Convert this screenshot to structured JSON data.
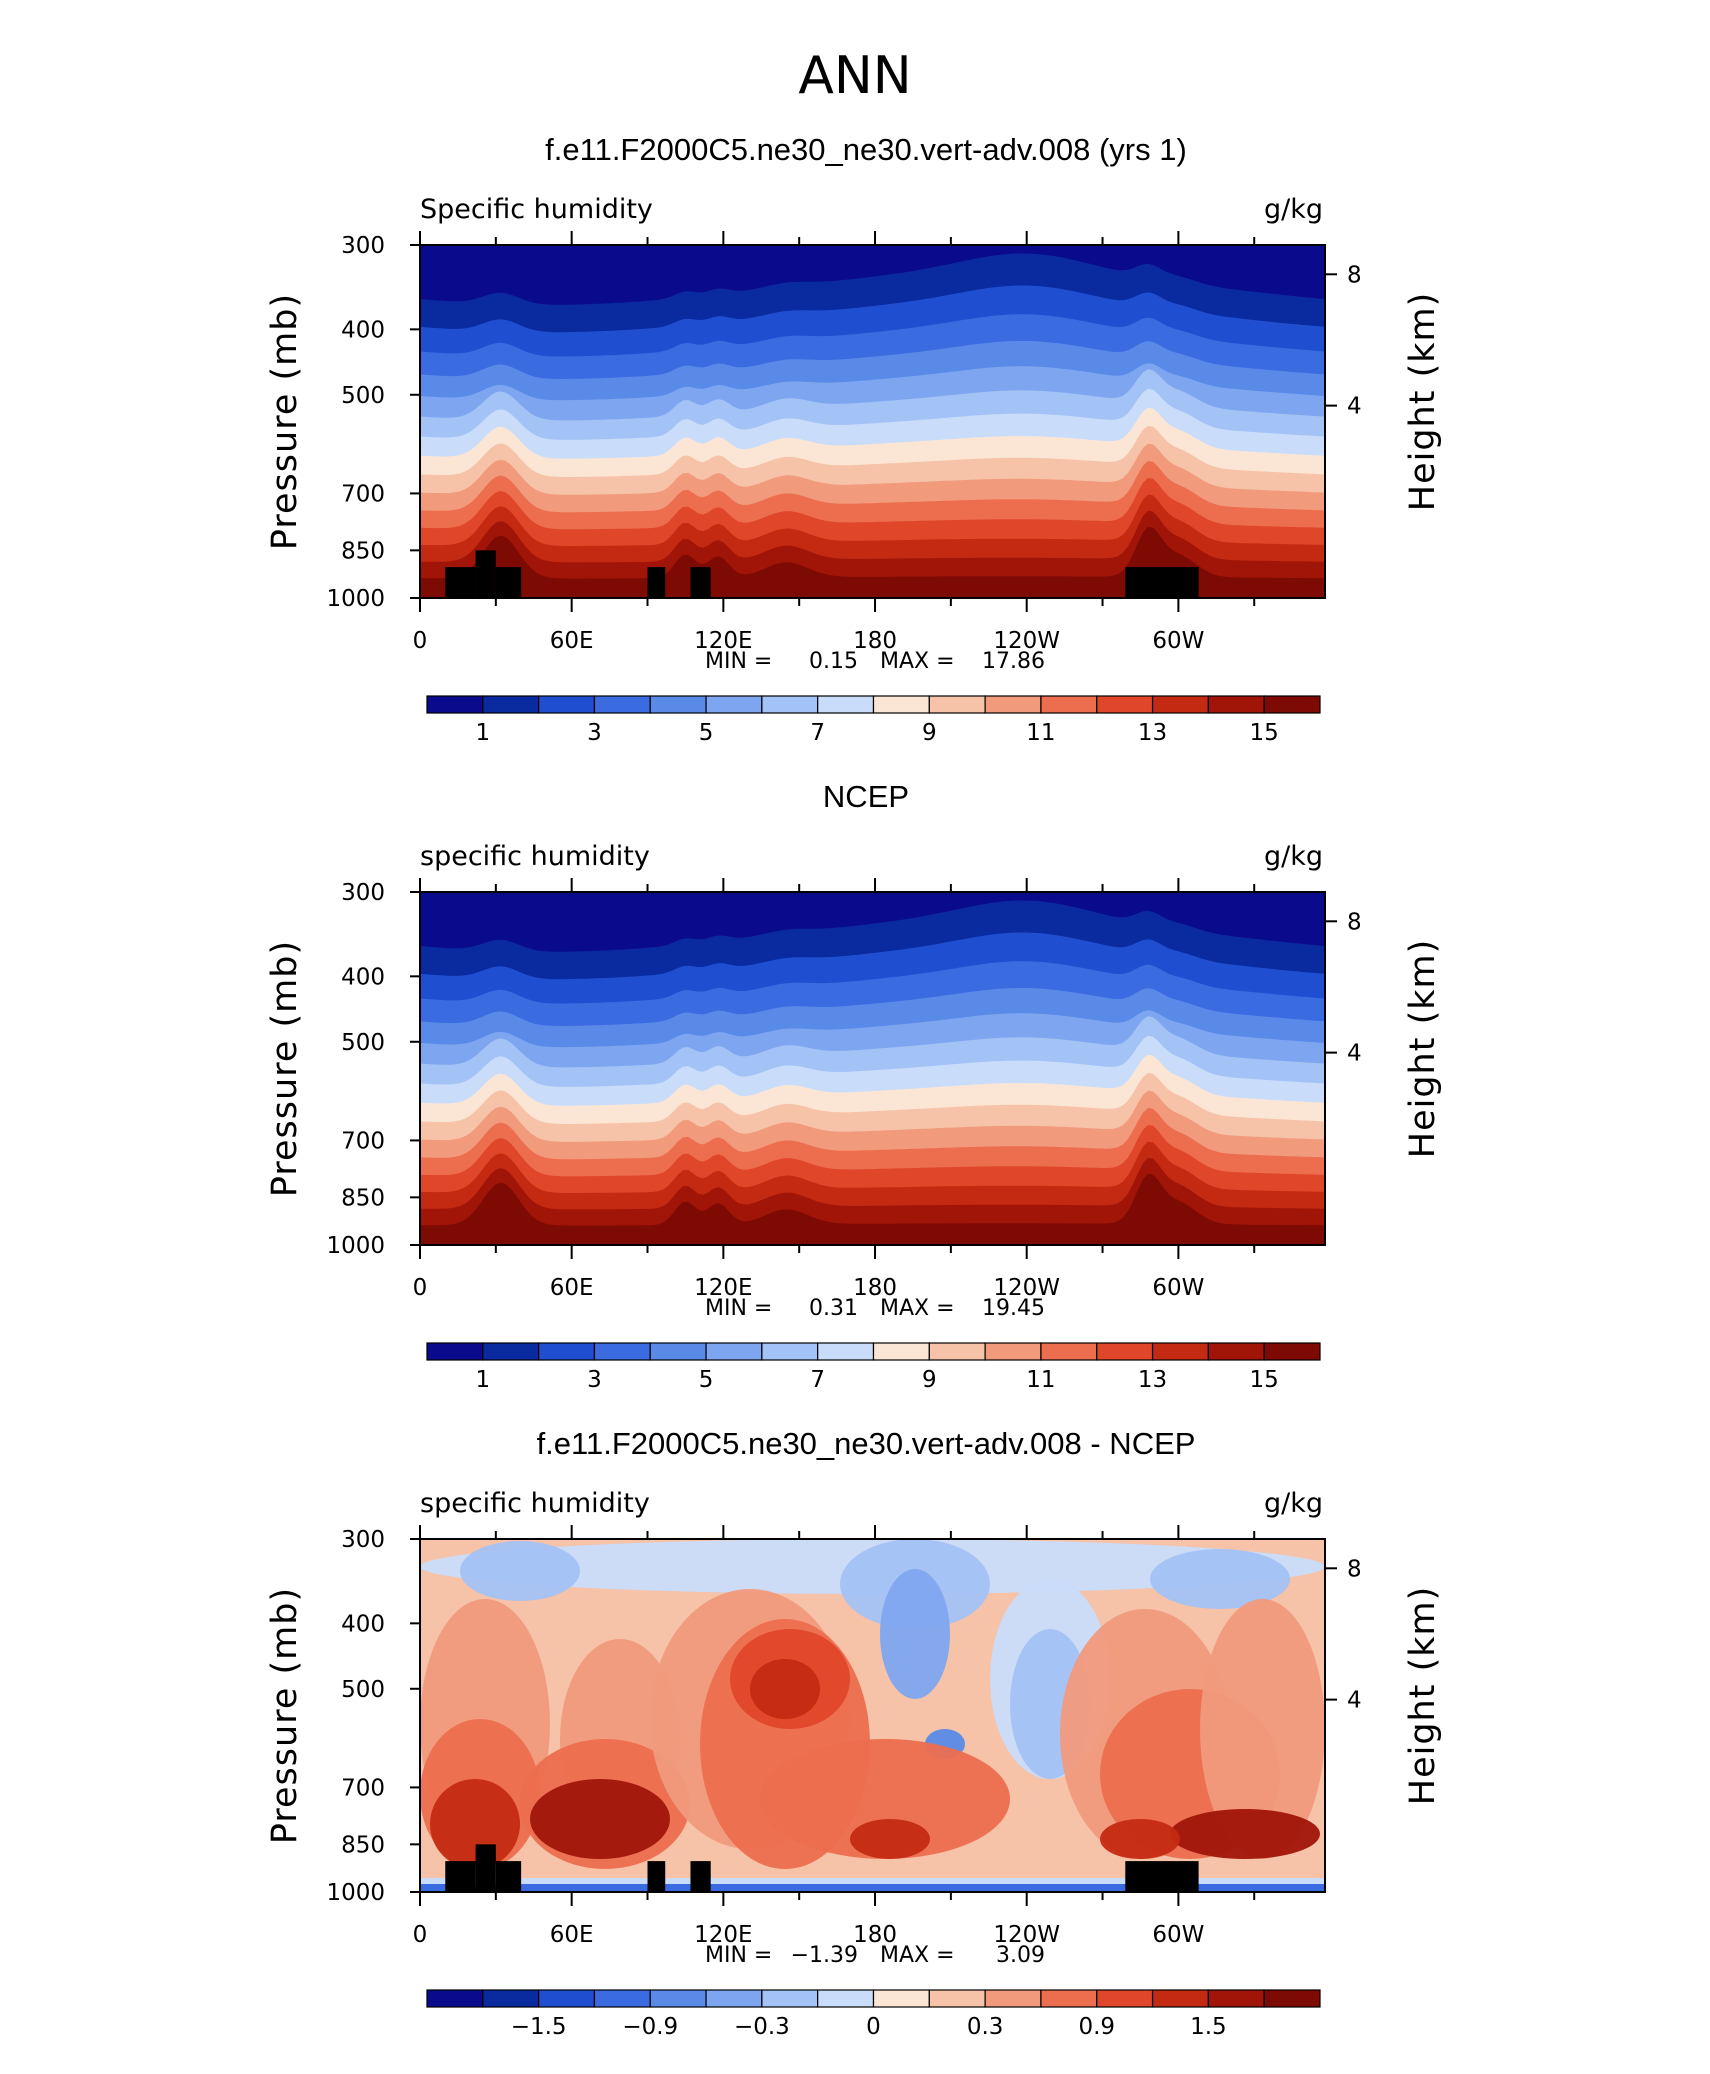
{
  "figure": {
    "title": "ANN"
  },
  "chart_data": [
    {
      "type": "heatmap",
      "title": "f.e11.F2000C5.ne30_ne30.vert-adv.008 (yrs 1)",
      "field_label": "Specific humidity",
      "units": "g/kg",
      "ylabel": "Pressure (mb)",
      "y2label": "Height (km)",
      "x_ticks": [
        "0",
        "60E",
        "120E",
        "180",
        "120W",
        "60W"
      ],
      "y_ticks": [
        "300",
        "400",
        "500",
        "700",
        "850",
        "1000"
      ],
      "y2_ticks": [
        "8",
        "4"
      ],
      "stats_text": {
        "min_label": "MIN =",
        "min": "0.15",
        "max_label": "MAX =",
        "max": "17.86"
      },
      "ylim": [
        1000,
        300
      ],
      "colorbar_labels": [
        "1",
        "3",
        "5",
        "7",
        "9",
        "11",
        "13",
        "15"
      ],
      "has_topography_mask": true,
      "fill_mode": "humidity"
    },
    {
      "type": "heatmap",
      "title": "NCEP",
      "field_label": "specific humidity",
      "units": "g/kg",
      "ylabel": "Pressure (mb)",
      "y2label": "Height (km)",
      "x_ticks": [
        "0",
        "60E",
        "120E",
        "180",
        "120W",
        "60W"
      ],
      "y_ticks": [
        "300",
        "400",
        "500",
        "700",
        "850",
        "1000"
      ],
      "y2_ticks": [
        "8",
        "4"
      ],
      "stats_text": {
        "min_label": "MIN =",
        "min": "0.31",
        "max_label": "MAX =",
        "max": "19.45"
      },
      "ylim": [
        1000,
        300
      ],
      "colorbar_labels": [
        "1",
        "3",
        "5",
        "7",
        "9",
        "11",
        "13",
        "15"
      ],
      "has_topography_mask": false,
      "fill_mode": "humidity"
    },
    {
      "type": "heatmap",
      "title": "f.e11.F2000C5.ne30_ne30.vert-adv.008 - NCEP",
      "field_label": "specific humidity",
      "units": "g/kg",
      "ylabel": "Pressure (mb)",
      "y2label": "Height (km)",
      "x_ticks": [
        "0",
        "60E",
        "120E",
        "180",
        "120W",
        "60W"
      ],
      "y_ticks": [
        "300",
        "400",
        "500",
        "700",
        "850",
        "1000"
      ],
      "y2_ticks": [
        "8",
        "4"
      ],
      "stats_text": {
        "min_label": "MIN =",
        "min": "−1.39",
        "max_label": "MAX =",
        "max": "3.09"
      },
      "ylim": [
        1000,
        300
      ],
      "colorbar_labels": [
        "−1.5",
        "−0.9",
        "−0.3",
        "0",
        "0.3",
        "0.9",
        "1.5"
      ],
      "has_topography_mask": true,
      "fill_mode": "difference"
    }
  ],
  "colormap": [
    "#0a0a8c",
    "#0a2aa0",
    "#1f4fd0",
    "#3a6be0",
    "#5a8ae8",
    "#7ea6f0",
    "#a3c2f5",
    "#c9dcfa",
    "#fbe6d6",
    "#f6c2a8",
    "#f19a7c",
    "#ec6e4f",
    "#e0462a",
    "#c42a12",
    "#a01508",
    "#7e0a04"
  ]
}
